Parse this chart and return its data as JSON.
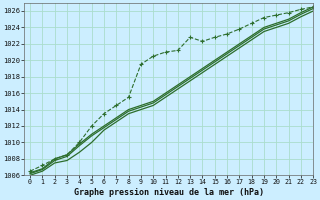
{
  "background_color": "#cceeff",
  "grid_color": "#aaddcc",
  "line_color": "#2d6e2d",
  "title": "Graphe pression niveau de la mer (hPa)",
  "xlim": [
    -0.5,
    23
  ],
  "ylim": [
    1006,
    1027
  ],
  "yticks": [
    1006,
    1008,
    1010,
    1012,
    1014,
    1016,
    1018,
    1020,
    1022,
    1024,
    1026
  ],
  "xticks": [
    0,
    1,
    2,
    3,
    4,
    5,
    6,
    7,
    8,
    9,
    10,
    11,
    12,
    13,
    14,
    15,
    16,
    17,
    18,
    19,
    20,
    21,
    22,
    23
  ],
  "series": [
    {
      "values": [
        1006.5,
        1007.2,
        1008.0,
        1008.5,
        1010.0,
        1012.0,
        1013.5,
        1014.5,
        1015.5,
        1019.5,
        1020.5,
        1021.0,
        1021.2,
        1022.8,
        1022.3,
        1022.8,
        1023.2,
        1023.8,
        1024.5,
        1025.2,
        1025.5,
        1025.8,
        1026.2,
        1026.5
      ],
      "style": "--",
      "marker": "+",
      "markersize": 3.5,
      "lw": 0.8
    },
    {
      "values": [
        1006.3,
        1006.8,
        1008.0,
        1008.5,
        1009.8,
        1011.0,
        1012.0,
        1013.0,
        1014.0,
        1014.5,
        1015.0,
        1016.0,
        1017.0,
        1018.0,
        1019.0,
        1020.0,
        1021.0,
        1022.0,
        1023.0,
        1024.0,
        1024.5,
        1025.0,
        1025.8,
        1026.5
      ],
      "style": "-",
      "marker": "None",
      "markersize": 0,
      "lw": 0.9
    },
    {
      "values": [
        1006.2,
        1006.7,
        1007.8,
        1008.3,
        1009.6,
        1010.8,
        1011.8,
        1012.8,
        1013.8,
        1014.3,
        1014.8,
        1015.8,
        1016.8,
        1017.8,
        1018.8,
        1019.8,
        1020.8,
        1021.8,
        1022.8,
        1023.8,
        1024.3,
        1024.8,
        1025.6,
        1026.3
      ],
      "style": "-",
      "marker": "None",
      "markersize": 0,
      "lw": 0.9
    },
    {
      "values": [
        1006.0,
        1006.5,
        1007.5,
        1007.8,
        1008.8,
        1010.0,
        1011.5,
        1012.5,
        1013.5,
        1014.0,
        1014.5,
        1015.5,
        1016.5,
        1017.5,
        1018.5,
        1019.5,
        1020.5,
        1021.5,
        1022.5,
        1023.5,
        1024.0,
        1024.5,
        1025.3,
        1026.0
      ],
      "style": "-",
      "marker": "None",
      "markersize": 0,
      "lw": 0.9
    }
  ]
}
